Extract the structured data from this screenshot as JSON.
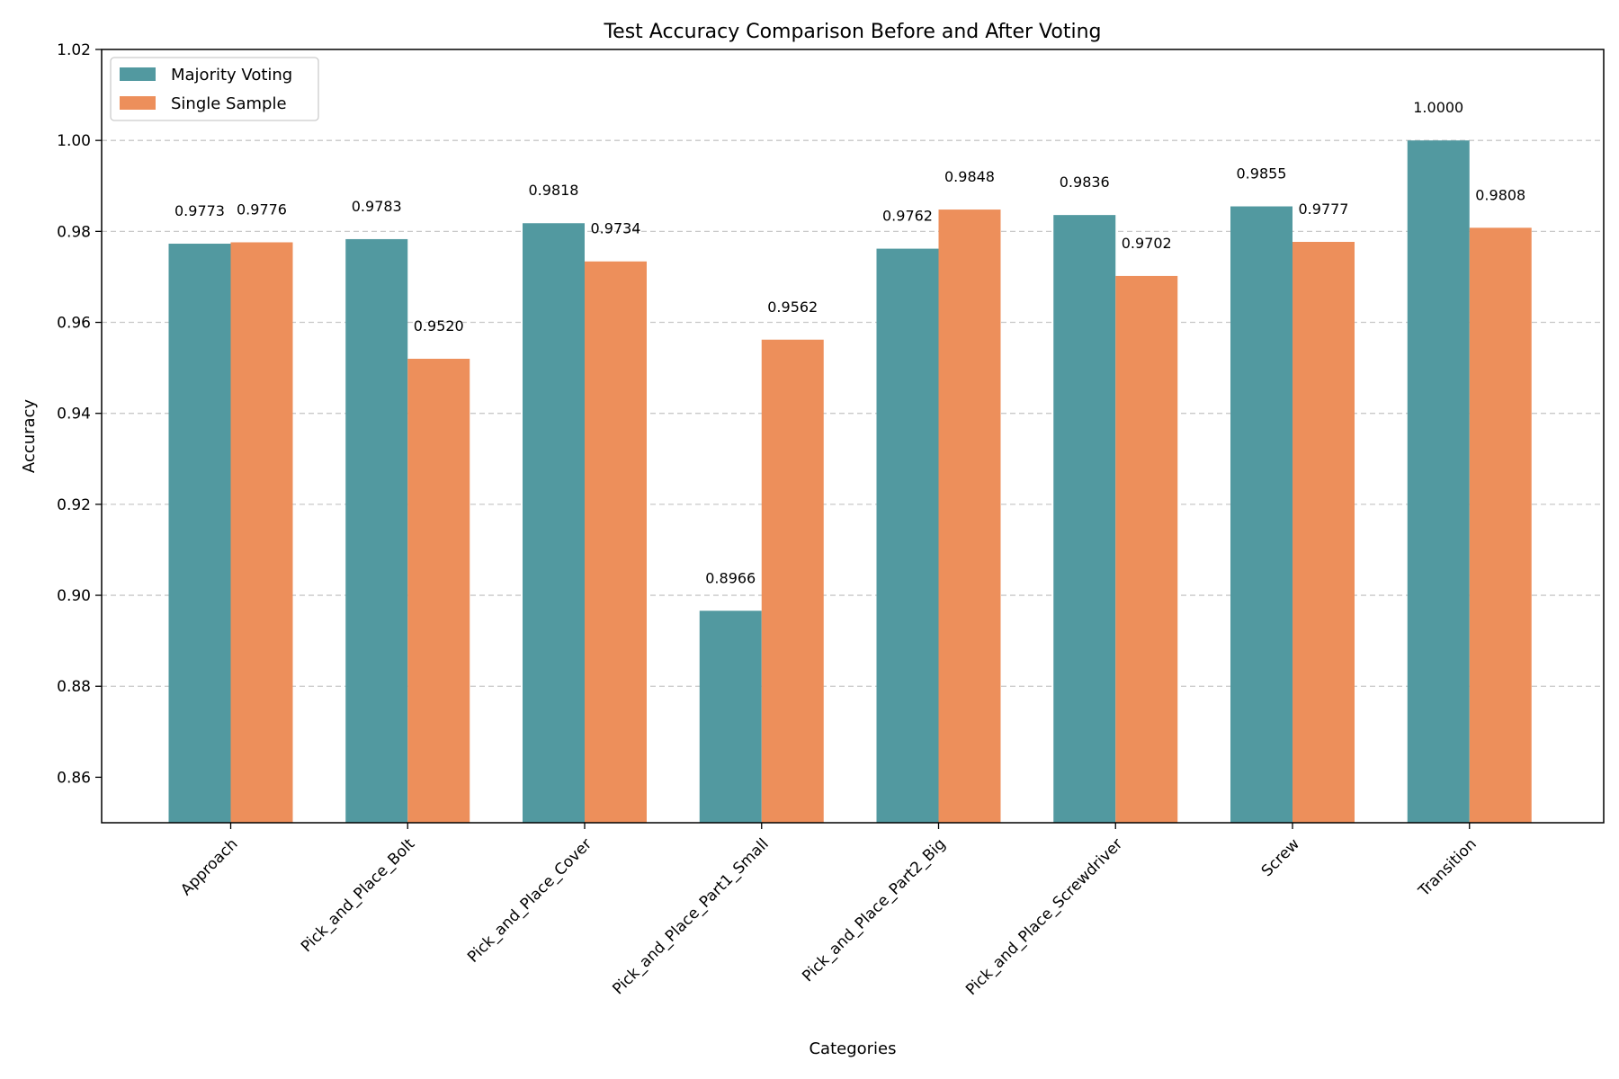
{
  "chart_data": {
    "type": "bar",
    "title": "Test Accuracy Comparison Before and After Voting",
    "xlabel": "Categories",
    "ylabel": "Accuracy",
    "ylim": [
      0.85,
      1.02
    ],
    "yticks": [
      0.86,
      0.88,
      0.9,
      0.92,
      0.94,
      0.96,
      0.98,
      1.0,
      1.02
    ],
    "ytick_labels": [
      "0.86",
      "0.88",
      "0.90",
      "0.92",
      "0.94",
      "0.96",
      "0.98",
      "1.00",
      "1.02"
    ],
    "grid": "y-dashed",
    "legend_position": "top-left",
    "categories": [
      "Approach",
      "Pick_and_Place_Bolt",
      "Pick_and_Place_Cover",
      "Pick_and_Place_Part1_Small",
      "Pick_and_Place_Part2_Big",
      "Pick_and_Place_Screwdriver",
      "Screw",
      "Transition"
    ],
    "series": [
      {
        "name": "Majority Voting",
        "color": "#5299a0",
        "values": [
          0.9773,
          0.9783,
          0.9818,
          0.8966,
          0.9762,
          0.9836,
          0.9855,
          1.0
        ],
        "labels": [
          "0.9773",
          "0.9783",
          "0.9818",
          "0.8966",
          "0.9762",
          "0.9836",
          "0.9855",
          "1.0000"
        ]
      },
      {
        "name": "Single Sample",
        "color": "#ed8f5b",
        "values": [
          0.9776,
          0.952,
          0.9734,
          0.9562,
          0.9848,
          0.9702,
          0.9777,
          0.9808
        ],
        "labels": [
          "0.9776",
          "0.9520",
          "0.9734",
          "0.9562",
          "0.9848",
          "0.9702",
          "0.9777",
          "0.9808"
        ]
      }
    ]
  }
}
